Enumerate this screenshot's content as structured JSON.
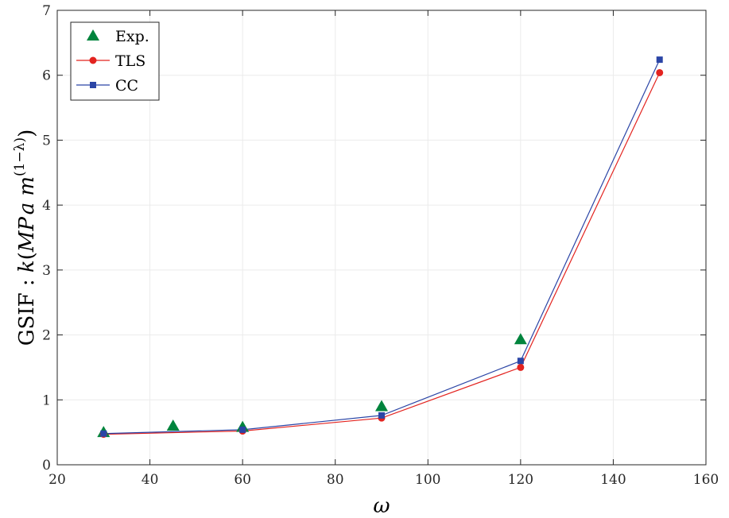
{
  "chart_data": {
    "type": "line",
    "xlabel": "ω",
    "ylabel": {
      "prefix": "GSIF : ",
      "k": "k",
      "paren_open": "(",
      "M": "M",
      "P": "P",
      "a": "a",
      "m": "m",
      "exponent": "(1−λ)",
      "paren_close": ")"
    },
    "xlim": [
      20,
      160
    ],
    "ylim": [
      0,
      7
    ],
    "xticks": [
      "20",
      "40",
      "60",
      "80",
      "100",
      "120",
      "140",
      "160"
    ],
    "yticks": [
      "0",
      "1",
      "2",
      "3",
      "4",
      "5",
      "6",
      "7"
    ],
    "grid": true,
    "legend_position": "top-left",
    "series": [
      {
        "name": "Exp.",
        "style": "markers",
        "marker": "triangle",
        "color": "#00843D",
        "x": [
          30,
          45,
          60,
          90,
          120
        ],
        "y": [
          0.5,
          0.6,
          0.58,
          0.9,
          1.93
        ]
      },
      {
        "name": "TLS",
        "style": "line-markers",
        "marker": "circle",
        "color": "#E3231F",
        "x": [
          30,
          60,
          90,
          120,
          150
        ],
        "y": [
          0.47,
          0.52,
          0.72,
          1.5,
          6.04
        ]
      },
      {
        "name": "CC",
        "style": "line-markers",
        "marker": "square",
        "color": "#2B45A6",
        "x": [
          30,
          60,
          90,
          120,
          150
        ],
        "y": [
          0.48,
          0.54,
          0.76,
          1.6,
          6.24
        ]
      }
    ]
  }
}
